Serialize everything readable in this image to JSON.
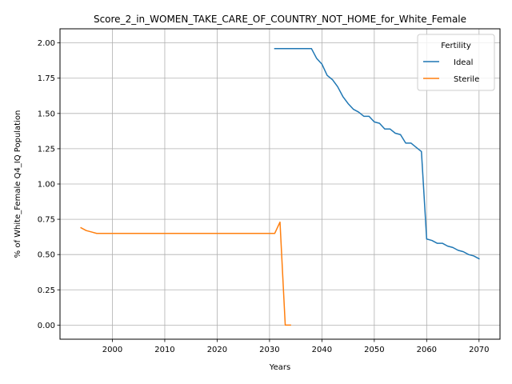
{
  "chart_data": {
    "type": "line",
    "title": "Score_2_in_WOMEN_TAKE_CARE_OF_COUNTRY_NOT_HOME_for_White_Female",
    "xlabel": "Years",
    "ylabel": "% of White_Female Q4_IQ Population",
    "xlim": [
      1990,
      2074
    ],
    "ylim": [
      -0.1,
      2.1
    ],
    "xticks": [
      2000,
      2010,
      2020,
      2030,
      2040,
      2050,
      2060,
      2070
    ],
    "yticks": [
      0.0,
      0.25,
      0.5,
      0.75,
      1.0,
      1.25,
      1.5,
      1.75,
      2.0
    ],
    "ytick_labels": [
      "0.00",
      "0.25",
      "0.50",
      "0.75",
      "1.00",
      "1.25",
      "1.50",
      "1.75",
      "2.00"
    ],
    "grid": true,
    "legend": {
      "title": "Fertility",
      "placement": "top-right"
    },
    "series": [
      {
        "name": "Ideal",
        "color": "#1f77b4",
        "x": [
          2031,
          2032,
          2033,
          2034,
          2035,
          2036,
          2037,
          2038,
          2039,
          2040,
          2041,
          2042,
          2043,
          2044,
          2045,
          2046,
          2047,
          2048,
          2049,
          2050,
          2051,
          2052,
          2053,
          2054,
          2055,
          2056,
          2057,
          2058,
          2059,
          2060,
          2061,
          2062,
          2063,
          2064,
          2065,
          2066,
          2067,
          2068,
          2069,
          2070
        ],
        "y": [
          1.96,
          1.96,
          1.96,
          1.96,
          1.96,
          1.96,
          1.96,
          1.96,
          1.89,
          1.85,
          1.77,
          1.74,
          1.69,
          1.62,
          1.57,
          1.53,
          1.51,
          1.48,
          1.48,
          1.44,
          1.43,
          1.39,
          1.39,
          1.36,
          1.35,
          1.29,
          1.29,
          1.26,
          1.23,
          0.61,
          0.6,
          0.58,
          0.58,
          0.56,
          0.55,
          0.53,
          0.52,
          0.5,
          0.49,
          0.47
        ]
      },
      {
        "name": "Sterile",
        "color": "#ff7f0e",
        "x": [
          1994,
          1995,
          1996,
          1997,
          1998,
          1999,
          2000,
          2001,
          2002,
          2003,
          2004,
          2005,
          2006,
          2007,
          2008,
          2009,
          2010,
          2011,
          2012,
          2013,
          2014,
          2015,
          2016,
          2017,
          2018,
          2019,
          2020,
          2021,
          2022,
          2023,
          2024,
          2025,
          2026,
          2027,
          2028,
          2029,
          2030,
          2031,
          2032,
          2033,
          2034
        ],
        "y": [
          0.69,
          0.67,
          0.66,
          0.65,
          0.65,
          0.65,
          0.65,
          0.65,
          0.65,
          0.65,
          0.65,
          0.65,
          0.65,
          0.65,
          0.65,
          0.65,
          0.65,
          0.65,
          0.65,
          0.65,
          0.65,
          0.65,
          0.65,
          0.65,
          0.65,
          0.65,
          0.65,
          0.65,
          0.65,
          0.65,
          0.65,
          0.65,
          0.65,
          0.65,
          0.65,
          0.65,
          0.65,
          0.65,
          0.73,
          0.0,
          0.0
        ]
      }
    ]
  }
}
